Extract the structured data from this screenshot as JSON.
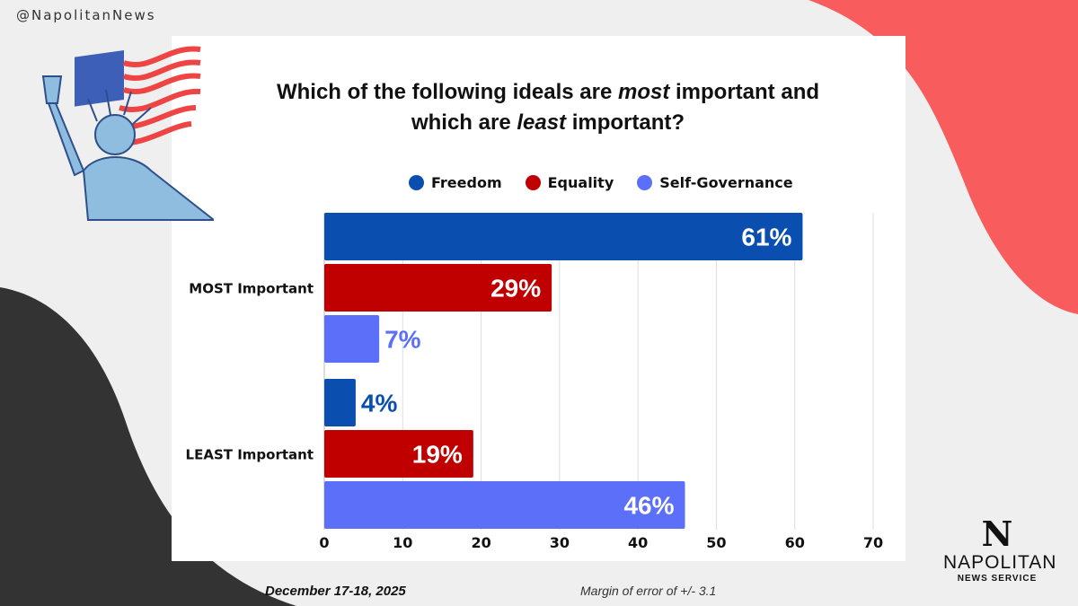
{
  "handle": "@NapolitanNews",
  "footer": {
    "date": "December 17-18, 2025",
    "margin": "Margin of error of +/- 3.1"
  },
  "logo": {
    "mark": "N",
    "name": "NAPOLITAN",
    "sub": "NEWS SERVICE"
  },
  "colors": {
    "background": "#efefef",
    "dark_shape": "#333333",
    "red_shape": "#f95c5c"
  },
  "chart_data": {
    "type": "bar",
    "orientation": "horizontal",
    "title_parts": [
      "Which of the following ideals are ",
      "most",
      " important and",
      "which are ",
      "least",
      " important?"
    ],
    "categories": [
      "MOST Important",
      "LEAST Important"
    ],
    "series": [
      {
        "name": "Freedom",
        "color": "#0a4fb0",
        "values": [
          61,
          4
        ],
        "labels": [
          "61%",
          "4%"
        ]
      },
      {
        "name": "Equality",
        "color": "#c00000",
        "values": [
          29,
          19
        ],
        "labels": [
          "29%",
          "19%"
        ]
      },
      {
        "name": "Self-Governance",
        "color": "#5b6ff8",
        "values": [
          7,
          46
        ],
        "labels": [
          "7%",
          "46%"
        ]
      }
    ],
    "xlim": [
      0,
      70
    ],
    "xticks": [
      "0",
      "10",
      "20",
      "30",
      "40",
      "50",
      "60",
      "70"
    ],
    "grid": true,
    "legend": "top"
  }
}
